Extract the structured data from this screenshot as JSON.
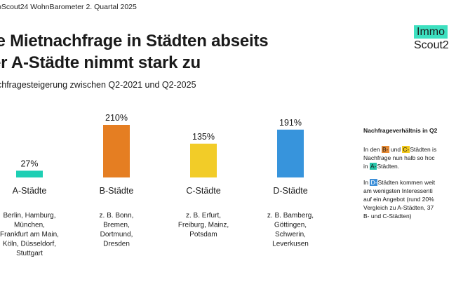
{
  "header": {
    "source": "oScout24 WohnBarometer 2. Quartal 2025",
    "title_line1": "ie Mietnachfrage in Städten abseits",
    "title_line2": "er A-Städte nimmt stark zu",
    "subtitle": "chfragesteigerung zwischen Q2-2021 und Q2-2025"
  },
  "logo": {
    "top": "Immo",
    "bottom": "Scout2"
  },
  "chart_data": {
    "type": "bar",
    "title": "",
    "xlabel": "",
    "ylabel": "",
    "categories": [
      "A-Städte",
      "B-Städte",
      "C-Städte",
      "D-Städte"
    ],
    "values": [
      27,
      210,
      135,
      191
    ],
    "value_labels": [
      "27%",
      "210%",
      "135%",
      "191%"
    ],
    "colors": [
      "#1ecfb4",
      "#e57e22",
      "#f2cc28",
      "#3794dc"
    ],
    "examples": [
      [
        "Berlin, Hamburg,",
        "München,",
        "Frankfurt am Main,",
        "Köln, Düsseldorf,",
        "Stuttgart"
      ],
      [
        "z. B. Bonn,",
        "Bremen,",
        "Dortmund,",
        "Dresden"
      ],
      [
        "z. B. Erfurt,",
        "Freiburg, Mainz,",
        "Potsdam"
      ],
      [
        "z. B. Bamberg,",
        "Göttingen,",
        "Schwerin,",
        "Leverkusen"
      ]
    ],
    "ylim": [
      0,
      210
    ],
    "grid": false,
    "legend": "none"
  },
  "sidebar": {
    "title": "Nachfrageverhältnis in Q2",
    "note1": {
      "p1": "In den ",
      "b": "B-",
      "p2": " und ",
      "c": "C-",
      "p3": "Städten is",
      "line2": "Nachfrage nun halb so hoc",
      "p4": "in ",
      "a": "A-",
      "p5": "Städten."
    },
    "note2": {
      "p1": "In ",
      "d": "D-",
      "p2": "Städten kommen weit",
      "line2": "am wenigsten Interessenti",
      "line3": "auf ein Angebot (rund 20%",
      "line4": "Vergleich zu A-Städten, 37",
      "line5": "B- und C-Städten)"
    }
  }
}
